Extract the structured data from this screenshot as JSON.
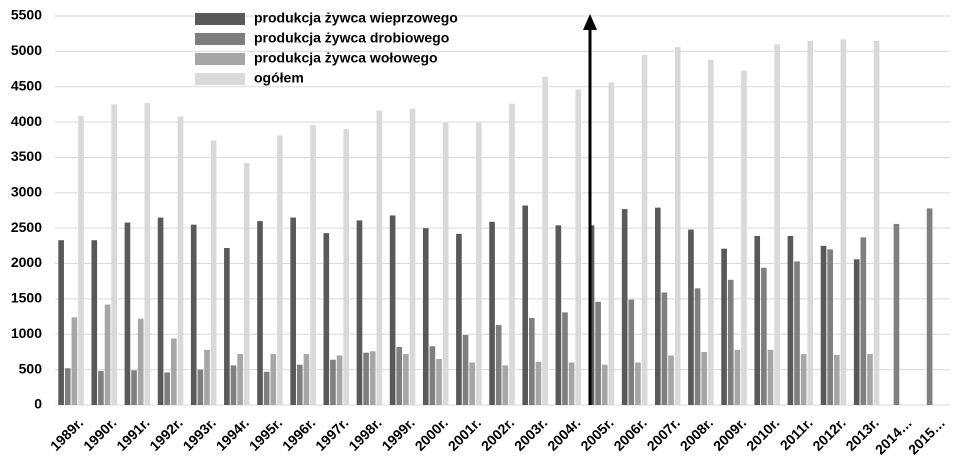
{
  "chart_data": {
    "type": "bar",
    "categories": [
      "1989r.",
      "1990r.",
      "1991r.",
      "1992r.",
      "1993r.",
      "1994r.",
      "1995r.",
      "1996r.",
      "1997r.",
      "1998r.",
      "1999r.",
      "2000r.",
      "2001r.",
      "2002r.",
      "2003r.",
      "2004r.",
      "2005r.",
      "2006r.",
      "2007r.",
      "2008r.",
      "2009r.",
      "2010r.",
      "2011r.",
      "2012r.",
      "2013r.",
      "2014…",
      "2015…"
    ],
    "series": [
      {
        "name": "produkcja żywca wieprzowego",
        "color": "#595959",
        "values": [
          2330,
          2330,
          2580,
          2650,
          2550,
          2220,
          2600,
          2650,
          2430,
          2610,
          2680,
          2500,
          2420,
          2590,
          2820,
          2540,
          2540,
          2770,
          2790,
          2480,
          2210,
          2390,
          2390,
          2250,
          2060,
          null,
          null
        ]
      },
      {
        "name": "produkcja żywca drobiowego",
        "color": "#7f7f7f",
        "values": [
          520,
          480,
          490,
          460,
          500,
          560,
          470,
          570,
          640,
          740,
          820,
          830,
          990,
          1130,
          1230,
          1310,
          1460,
          1490,
          1590,
          1650,
          1770,
          1940,
          2030,
          2200,
          2370,
          2560,
          2780
        ]
      },
      {
        "name": "produkcja żywca wołowego",
        "color": "#a6a6a6",
        "values": [
          1240,
          1420,
          1220,
          940,
          780,
          720,
          720,
          720,
          700,
          760,
          720,
          650,
          600,
          560,
          610,
          600,
          570,
          600,
          700,
          750,
          780,
          780,
          720,
          710,
          720,
          null,
          null
        ]
      },
      {
        "name": "ogółem",
        "color": "#d9d9d9",
        "values": [
          4090,
          4250,
          4270,
          4080,
          3740,
          3420,
          3810,
          3960,
          3900,
          4160,
          4190,
          3990,
          3990,
          4260,
          4640,
          4460,
          4560,
          4950,
          5060,
          4880,
          4730,
          5100,
          5150,
          5170,
          5150,
          null,
          null
        ]
      }
    ],
    "ylim": [
      0,
      5500
    ],
    "yticks": [
      0,
      500,
      1000,
      1500,
      2000,
      2500,
      3000,
      3500,
      4000,
      4500,
      5000,
      5500
    ],
    "grid": true
  }
}
